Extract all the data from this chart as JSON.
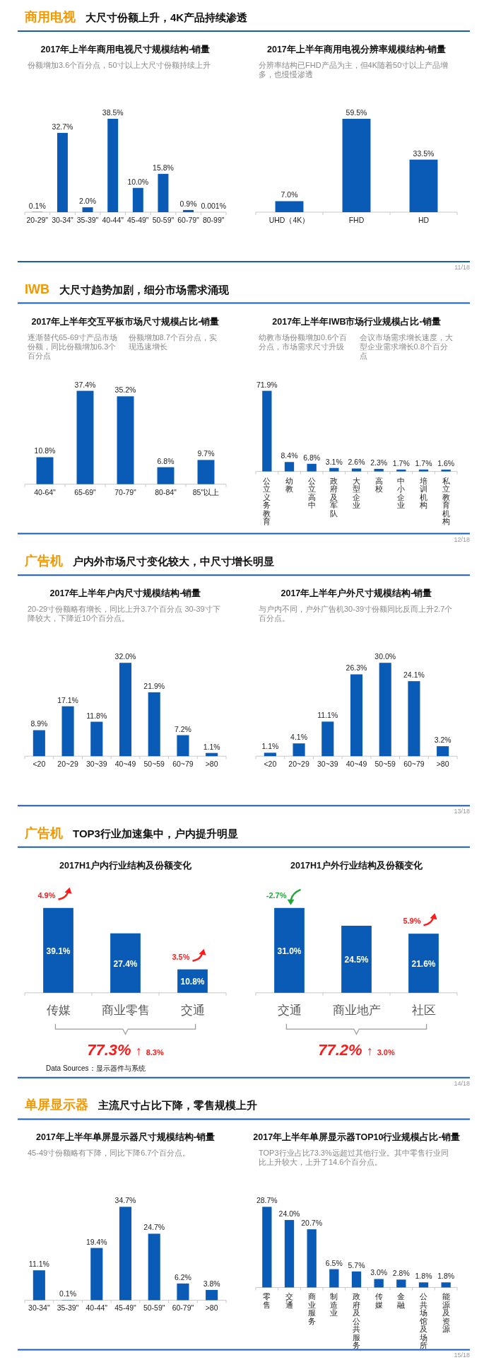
{
  "chart_data": [
    {
      "type": "other",
      "subtitle": "商用电视",
      "title": "大尺寸份额上升，4K产品持续渗透",
      "annotations": [
        "11/18"
      ]
    },
    {
      "type": "bar",
      "title": "2017年上半年商用电视尺寸规模结构-销量",
      "color": "#0a5bb5",
      "categories": [
        "20-29\"",
        "30-34\"",
        "35-39\"",
        "40-44\"",
        "45-49\"",
        "50-59\"",
        "60-79\"",
        "80-99\""
      ],
      "values": [
        0.1,
        32.7,
        2.0,
        38.5,
        10.0,
        15.8,
        0.9,
        0.001
      ],
      "value_labels": [
        "0.1%",
        "32.7%",
        "2.0%",
        "38.5%",
        "10.0%",
        "15.8%",
        "0.9%",
        "0.001%"
      ],
      "annotations": [
        "份额增加3.6个百分点，50寸以上大尺寸份额持续上升"
      ]
    },
    {
      "type": "bar",
      "title": "2017年上半年商用电视分辨率规模结构-销量",
      "color": "#0a5bb5",
      "categories": [
        "UHD（4K）",
        "FHD",
        "HD"
      ],
      "values": [
        7.0,
        59.5,
        33.5
      ],
      "value_labels": [
        "7.0%",
        "59.5%",
        "33.5%"
      ],
      "annotations": [
        "分辨率结构已FHD产品为主，但4K随着50寸以上产品增多，也慢慢渗透"
      ]
    },
    {
      "type": "other",
      "subtitle": "IWB",
      "title": "大尺寸趋势加剧，细分市场需求涌现",
      "annotations": [
        "12/18"
      ]
    },
    {
      "type": "bar",
      "title": "2017年上半年交互平板市场尺寸规模占比-销量",
      "color": "#0a5bb5",
      "categories": [
        "40-64\"",
        "65-69\"",
        "70-79\"",
        "80-84\"",
        "85\"以上"
      ],
      "values": [
        10.8,
        37.4,
        35.2,
        6.8,
        9.7
      ],
      "value_labels": [
        "10.8%",
        "37.4%",
        "35.2%",
        "6.8%",
        "9.7%"
      ],
      "annotations": [
        "逐渐替代65-69寸产品市场份额，同比份额增加6.3个百分点",
        "份额增加8.7个百分点，实现迅速增长"
      ]
    },
    {
      "type": "bar",
      "title": "2017年上半年IWB市场行业规模占比-销量",
      "color": "#0a5bb5",
      "categories": [
        "公立义务教育",
        "幼教",
        "公立高中",
        "政府及军队",
        "大型企业",
        "高校",
        "中小企业",
        "培训机构",
        "私立教育机构"
      ],
      "values": [
        71.9,
        8.4,
        6.8,
        3.1,
        2.6,
        2.3,
        1.7,
        1.7,
        1.6
      ],
      "value_labels": [
        "71.9%",
        "8.4%",
        "6.8%",
        "3.1%",
        "2.6%",
        "2.3%",
        "1.7%",
        "1.7%",
        "1.6%"
      ],
      "annotations": [
        "幼教市场份额增加0.6个百分点，市场需求尺寸升级",
        "会议市场需求增长速度，大型企业需求增长0.8个百分点"
      ]
    },
    {
      "type": "other",
      "subtitle": "广告机",
      "title": "户内外市场尺寸变化较大，中尺寸增长明显",
      "annotations": [
        "13/18"
      ]
    },
    {
      "type": "bar",
      "title": "2017年上半年户内尺寸规模结构-销量",
      "color": "#0a5bb5",
      "categories": [
        "<20",
        "20~29",
        "30~39",
        "40~49",
        "50~59",
        "60~79",
        ">80"
      ],
      "values": [
        8.9,
        17.1,
        11.8,
        32.0,
        21.9,
        7.2,
        1.1
      ],
      "value_labels": [
        "8.9%",
        "17.1%",
        "11.8%",
        "32.0%",
        "21.9%",
        "7.2%",
        "1.1%"
      ],
      "annotations": [
        "20-29寸份额略有增长，同比上升3.7个百分点 30-39寸下降较大，下降近10个百分点。"
      ]
    },
    {
      "type": "bar",
      "title": "2017年上半年户外尺寸规模结构-销量",
      "color": "#0a5bb5",
      "categories": [
        "<20",
        "20~29",
        "30~39",
        "40~49",
        "50~59",
        "60~79",
        ">80"
      ],
      "values": [
        1.1,
        4.1,
        11.1,
        26.3,
        30.0,
        24.1,
        3.2
      ],
      "value_labels": [
        "1.1%",
        "4.1%",
        "11.1%",
        "26.3%",
        "30.0%",
        "24.1%",
        "3.2%"
      ],
      "annotations": [
        "与户内不同，户外广告机30-39寸份额同比反而上升2.7个百分点。"
      ]
    },
    {
      "type": "other",
      "subtitle": "广告机",
      "title": "TOP3行业加速集中，户内提升明显",
      "annotations": [
        "14/18"
      ]
    },
    {
      "type": "bar",
      "title": "2017H1户内行业结构及份额变化",
      "color": "#0a5bb5",
      "categories": [
        "传媒",
        "商业零售",
        "交通"
      ],
      "values": [
        39.1,
        27.4,
        10.8
      ],
      "value_labels": [
        "39.1%",
        "27.4%",
        "10.8%"
      ],
      "annotations": [
        {
          "text": "4.9%",
          "x": "传媒",
          "y": 39.1
        },
        {
          "text": "3.5%",
          "x": "交通",
          "y": 10.8
        },
        "77.3% ↑ 8.3%",
        "Data Sources：显示器件与系统"
      ]
    },
    {
      "type": "bar",
      "title": "2017H1户外行业结构及份额变化",
      "color": "#0a5bb5",
      "categories": [
        "交通",
        "商业地产",
        "社区"
      ],
      "values": [
        31.0,
        24.5,
        21.6
      ],
      "value_labels": [
        "31.0%",
        "24.5%",
        "21.6%"
      ],
      "annotations": [
        {
          "text": "-2.7%",
          "x": "交通",
          "y": 31.0
        },
        {
          "text": "5.9%",
          "x": "社区",
          "y": 21.6
        },
        "77.2% ↑ 3.0%"
      ]
    },
    {
      "type": "other",
      "subtitle": "单屏显示器",
      "title": "主流尺寸占比下降，零售规模上升",
      "annotations": [
        "15/18"
      ]
    },
    {
      "type": "bar",
      "title": "2017年上半年单屏显示器尺寸规模结构-销量",
      "color": "#0a5bb5",
      "categories": [
        "30-34\"",
        "35-39\"",
        "40-44\"",
        "45-49\"",
        "50-59\"",
        "60-79\"",
        ">80"
      ],
      "values": [
        11.1,
        0.1,
        19.4,
        34.7,
        24.7,
        6.2,
        3.8
      ],
      "value_labels": [
        "11.1%",
        "0.1%",
        "19.4%",
        "34.7%",
        "24.7%",
        "6.2%",
        "3.8%"
      ],
      "annotations": [
        "45-49寸份额略有下降，同比下降6.7个百分点。"
      ]
    },
    {
      "type": "bar",
      "title": "2017年上半年单屏显示器TOP10行业规模占比-销量",
      "color": "#0a5bb5",
      "categories": [
        "零售",
        "交通",
        "商业服务",
        "制造业",
        "政府及公共服务",
        "传媒",
        "金融",
        "公共场馆及场所",
        "能源及资源"
      ],
      "values": [
        28.7,
        24.0,
        20.7,
        6.5,
        5.7,
        3.0,
        2.8,
        1.8,
        1.8
      ],
      "value_labels": [
        "28.7%",
        "24.0%",
        "20.7%",
        "6.5%",
        "5.7%",
        "3.0%",
        "2.8%",
        "1.8%",
        "1.8%"
      ],
      "annotations": [
        "TOP3行业占比73.3%远超过其他行业。其中零售行业同比上升较大，上升了14.6个百分点。"
      ]
    }
  ]
}
